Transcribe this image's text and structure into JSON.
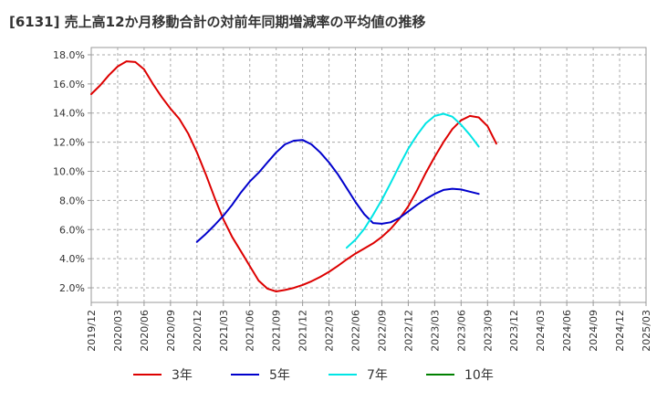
{
  "chart_data": {
    "type": "line",
    "title": "[6131]  売上高12か月移動合計の対前年同期増減率の平均値の推移",
    "xlabel": "",
    "ylabel": "",
    "ylim": [
      1.0,
      18.5
    ],
    "yticks": [
      2.0,
      4.0,
      6.0,
      8.0,
      10.0,
      12.0,
      14.0,
      16.0,
      18.0
    ],
    "ytick_labels": [
      "2.0%",
      "4.0%",
      "6.0%",
      "8.0%",
      "10.0%",
      "12.0%",
      "14.0%",
      "16.0%",
      "18.0%"
    ],
    "xtick_labels": [
      "2019/12",
      "2020/03",
      "2020/06",
      "2020/09",
      "2020/12",
      "2021/03",
      "2021/06",
      "2021/09",
      "2021/12",
      "2022/03",
      "2022/06",
      "2022/09",
      "2022/12",
      "2023/03",
      "2023/06",
      "2023/09",
      "2023/12",
      "2024/03",
      "2024/06",
      "2024/09",
      "2024/12",
      "2025/03"
    ],
    "grid": true,
    "legend_position": "bottom",
    "series": [
      {
        "name": "3年",
        "color": "#dd0000",
        "points": [
          [
            0,
            15.3
          ],
          [
            1,
            15.9
          ],
          [
            2,
            16.6
          ],
          [
            3,
            17.2
          ],
          [
            4,
            17.55
          ],
          [
            5,
            17.5
          ],
          [
            6,
            17.0
          ],
          [
            7,
            16.0
          ],
          [
            8,
            15.1
          ],
          [
            9,
            14.3
          ],
          [
            10,
            13.6
          ],
          [
            11,
            12.6
          ],
          [
            12,
            11.3
          ],
          [
            13,
            9.8
          ],
          [
            14,
            8.2
          ],
          [
            15,
            6.7
          ],
          [
            16,
            5.5
          ],
          [
            17,
            4.5
          ],
          [
            18,
            3.5
          ],
          [
            19,
            2.5
          ],
          [
            20,
            1.95
          ],
          [
            21,
            1.75
          ],
          [
            22,
            1.85
          ],
          [
            23,
            2.0
          ],
          [
            24,
            2.2
          ],
          [
            25,
            2.45
          ],
          [
            26,
            2.75
          ],
          [
            27,
            3.1
          ],
          [
            28,
            3.5
          ],
          [
            29,
            3.95
          ],
          [
            30,
            4.35
          ],
          [
            31,
            4.7
          ],
          [
            32,
            5.05
          ],
          [
            33,
            5.5
          ],
          [
            34,
            6.05
          ],
          [
            35,
            6.75
          ],
          [
            36,
            7.6
          ],
          [
            37,
            8.7
          ],
          [
            38,
            9.9
          ],
          [
            39,
            11.0
          ],
          [
            40,
            12.0
          ],
          [
            41,
            12.9
          ],
          [
            42,
            13.5
          ],
          [
            43,
            13.8
          ],
          [
            44,
            13.7
          ],
          [
            45,
            13.1
          ],
          [
            46,
            11.9
          ]
        ]
      },
      {
        "name": "5年",
        "color": "#0000cc",
        "points": [
          [
            12,
            5.15
          ],
          [
            13,
            5.7
          ],
          [
            14,
            6.3
          ],
          [
            15,
            6.95
          ],
          [
            16,
            7.7
          ],
          [
            17,
            8.55
          ],
          [
            18,
            9.3
          ],
          [
            19,
            9.9
          ],
          [
            20,
            10.6
          ],
          [
            21,
            11.3
          ],
          [
            22,
            11.85
          ],
          [
            23,
            12.1
          ],
          [
            24,
            12.15
          ],
          [
            25,
            11.85
          ],
          [
            26,
            11.3
          ],
          [
            27,
            10.6
          ],
          [
            28,
            9.8
          ],
          [
            29,
            8.85
          ],
          [
            30,
            7.9
          ],
          [
            31,
            7.05
          ],
          [
            32,
            6.45
          ],
          [
            33,
            6.4
          ],
          [
            34,
            6.5
          ],
          [
            35,
            6.8
          ],
          [
            36,
            7.25
          ],
          [
            37,
            7.7
          ],
          [
            38,
            8.1
          ],
          [
            39,
            8.45
          ],
          [
            40,
            8.72
          ],
          [
            41,
            8.8
          ],
          [
            42,
            8.75
          ],
          [
            43,
            8.6
          ],
          [
            44,
            8.45
          ]
        ]
      },
      {
        "name": "7年",
        "color": "#00e5e5",
        "points": [
          [
            29,
            4.75
          ],
          [
            30,
            5.3
          ],
          [
            31,
            6.05
          ],
          [
            32,
            7.0
          ],
          [
            33,
            8.05
          ],
          [
            34,
            9.2
          ],
          [
            35,
            10.4
          ],
          [
            36,
            11.55
          ],
          [
            37,
            12.5
          ],
          [
            38,
            13.3
          ],
          [
            39,
            13.8
          ],
          [
            40,
            13.95
          ],
          [
            41,
            13.75
          ],
          [
            42,
            13.2
          ],
          [
            43,
            12.5
          ],
          [
            44,
            11.7
          ]
        ]
      },
      {
        "name": "10年",
        "color": "#008000",
        "points": []
      }
    ]
  }
}
